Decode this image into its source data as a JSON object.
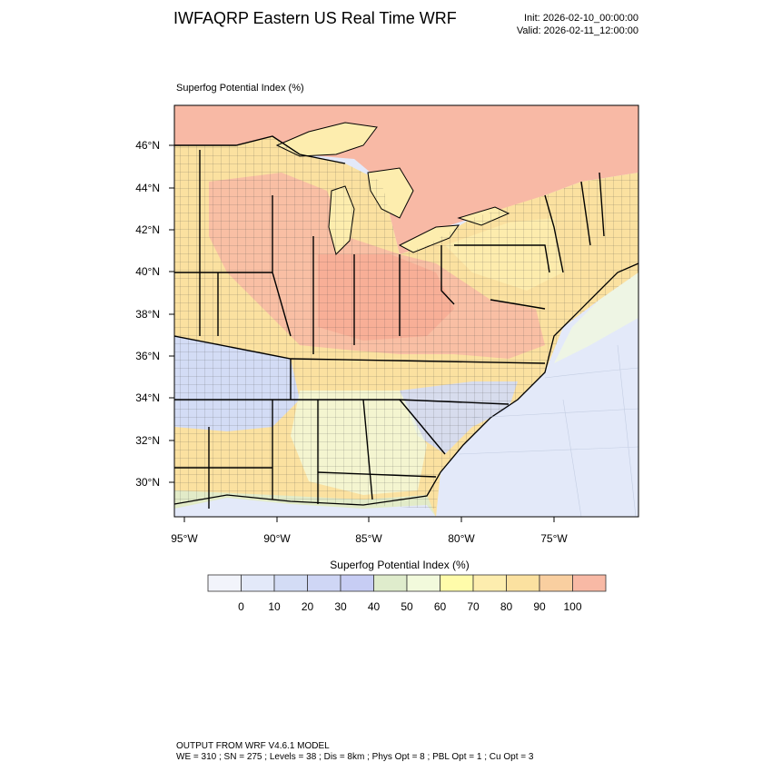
{
  "header": {
    "title": "IWFAQRP Eastern US Real Time WRF",
    "init": "Init: 2026-02-10_00:00:00",
    "valid": "Valid: 2026-02-11_12:00:00"
  },
  "plot": {
    "subtitle": "Superfog Potential Index   (%)",
    "lat_ticks": [
      "46°N",
      "44°N",
      "42°N",
      "40°N",
      "38°N",
      "36°N",
      "34°N",
      "32°N",
      "30°N"
    ],
    "lon_ticks": [
      "95°W",
      "90°W",
      "85°W",
      "80°W",
      "75°W"
    ]
  },
  "colorbar": {
    "title": "Superfog Potential Index  (%)",
    "colors": [
      "#f2f4fb",
      "#e3e9f9",
      "#d3dcf5",
      "#cfd6f5",
      "#c7cdf4",
      "#dfeccc",
      "#f2fadc",
      "#fffcaa",
      "#fdedae",
      "#fbe1a0",
      "#f9cfa0",
      "#f8b9a5"
    ],
    "labels": [
      "0",
      "10",
      "20",
      "30",
      "40",
      "50",
      "60",
      "70",
      "80",
      "90",
      "100"
    ]
  },
  "footer": {
    "line1": "OUTPUT FROM WRF V4.6.1 MODEL",
    "line2": "WE = 310 ; SN = 275 ; Levels = 38 ; Dis = 8km ; Phys Opt = 8 ; PBL Opt = 1 ; Cu Opt = 3"
  }
}
